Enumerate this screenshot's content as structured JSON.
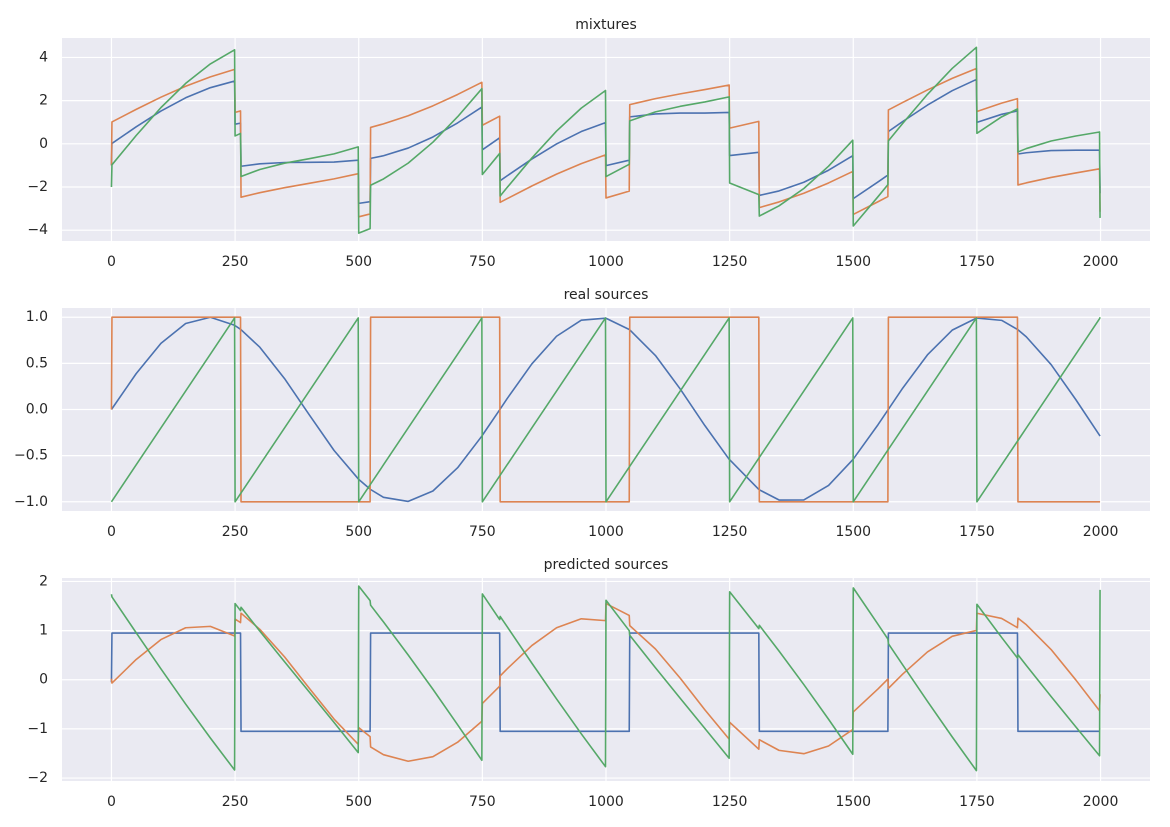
{
  "chart_data": [
    {
      "type": "line",
      "title": "mixtures",
      "x": [
        0,
        1,
        50,
        100,
        150,
        200,
        249,
        250,
        261,
        262,
        300,
        350,
        400,
        450,
        499,
        500,
        523,
        524,
        550,
        600,
        650,
        700,
        749,
        750,
        785,
        786,
        800,
        850,
        900,
        950,
        999,
        1000,
        1047,
        1048,
        1100,
        1150,
        1200,
        1249,
        1250,
        1309,
        1310,
        1350,
        1400,
        1450,
        1499,
        1500,
        1550,
        1570,
        1571,
        1600,
        1650,
        1700,
        1749,
        1750,
        1800,
        1832,
        1833,
        1850,
        1900,
        1950,
        1998,
        1999
      ],
      "series": [
        {
          "color": "#4c72b0",
          "values": [
            -1,
            0.016,
            0.789,
            1.517,
            2.132,
            2.6,
            2.905,
            0.909,
            0.957,
            -1.039,
            -0.925,
            -0.865,
            -0.858,
            -0.843,
            -0.759,
            -2.757,
            -2.679,
            -0.675,
            -0.552,
            -0.196,
            0.317,
            0.969,
            1.704,
            -0.279,
            0.277,
            -1.707,
            -1.483,
            -0.706,
            -0.006,
            0.568,
            0.982,
            -1.011,
            -0.757,
            1.247,
            1.385,
            1.423,
            1.425,
            1.452,
            -0.544,
            -0.394,
            -2.39,
            -2.181,
            -1.78,
            -1.223,
            -0.552,
            -2.537,
            -1.765,
            -1.446,
            0.57,
            1.032,
            1.792,
            2.46,
            2.982,
            0.991,
            1.366,
            1.524,
            -0.472,
            -0.413,
            -0.313,
            -0.293,
            -0.296,
            -2.288
          ]
        },
        {
          "color": "#dd8452",
          "values": [
            -1,
            1.012,
            1.595,
            2.159,
            2.666,
            3.1,
            3.449,
            1.455,
            1.523,
            -2.472,
            -2.263,
            -2.033,
            -1.829,
            -1.622,
            -1.384,
            -3.379,
            -3.248,
            0.759,
            0.924,
            1.302,
            1.759,
            2.285,
            2.848,
            0.861,
            1.279,
            -2.71,
            -2.542,
            -1.953,
            -1.403,
            -0.916,
            -0.513,
            -2.506,
            -2.19,
            1.816,
            2.093,
            2.312,
            2.513,
            2.722,
            0.728,
            1.039,
            -2.955,
            -2.691,
            -2.29,
            -1.812,
            -1.28,
            -3.269,
            -2.683,
            -2.443,
            1.569,
            1.916,
            2.496,
            3.03,
            3.487,
            1.496,
            1.883,
            2.09,
            -1.904,
            -1.807,
            -1.557,
            -1.347,
            -1.156,
            -3.144
          ]
        },
        {
          "color": "#55a868",
          "values": [
            -2,
            -0.972,
            0.384,
            1.676,
            2.798,
            3.7,
            4.354,
            0.364,
            0.48,
            -1.511,
            -1.188,
            -0.898,
            -0.687,
            -0.465,
            -0.143,
            -4.136,
            -3.927,
            -1.917,
            -1.628,
            -0.894,
            0.076,
            1.254,
            2.552,
            -1.419,
            -0.445,
            -2.417,
            -2.025,
            -0.659,
            0.591,
            1.652,
            2.469,
            -1.517,
            -0.947,
            1.063,
            1.478,
            1.735,
            1.938,
            2.174,
            -1.816,
            -2.355,
            -3.345,
            -2.872,
            -2.07,
            -1.035,
            0.168,
            -3.806,
            -2.448,
            -1.889,
            0.139,
            0.948,
            2.288,
            3.49,
            4.469,
            0.487,
            1.249,
            1.614,
            -0.376,
            -0.22,
            0.131,
            0.361,
            0.548,
            -3.432
          ]
        }
      ],
      "xlim": [
        -100,
        2100
      ],
      "ylim": [
        -4.5,
        4.9
      ],
      "xticks": [
        0,
        250,
        500,
        750,
        1000,
        1250,
        1500,
        1750,
        2000
      ],
      "yticks": [
        {
          "value": -4,
          "label": "−4"
        },
        {
          "value": -2,
          "label": "−2"
        },
        0,
        2,
        4
      ],
      "grid": true
    },
    {
      "type": "line",
      "title": "real sources",
      "x": [
        0,
        1,
        50,
        100,
        150,
        200,
        249,
        250,
        261,
        262,
        300,
        350,
        400,
        450,
        499,
        500,
        523,
        524,
        550,
        600,
        650,
        700,
        749,
        750,
        785,
        786,
        800,
        850,
        900,
        950,
        999,
        1000,
        1047,
        1048,
        1100,
        1150,
        1200,
        1249,
        1250,
        1309,
        1310,
        1350,
        1400,
        1450,
        1499,
        1500,
        1550,
        1570,
        1571,
        1600,
        1650,
        1700,
        1749,
        1750,
        1800,
        1832,
        1833,
        1850,
        1900,
        1950,
        1998,
        1999
      ],
      "series": [
        {
          "color": "#4c72b0",
          "values": [
            0,
            0.008,
            0.389,
            0.717,
            0.932,
            1.0,
            0.913,
            0.909,
            0.869,
            0.865,
            0.675,
            0.335,
            -0.058,
            -0.443,
            -0.751,
            -0.757,
            -0.863,
            -0.867,
            -0.952,
            -0.996,
            -0.883,
            -0.631,
            -0.288,
            -0.279,
            -0.003,
            0.005,
            0.117,
            0.494,
            0.794,
            0.968,
            0.99,
            0.989,
            0.867,
            0.863,
            0.585,
            0.223,
            -0.175,
            -0.54,
            -0.544,
            -0.866,
            -0.87,
            -0.981,
            -0.98,
            -0.823,
            -0.544,
            -0.537,
            -0.165,
            -0.006,
            0.002,
            0.232,
            0.592,
            0.86,
            0.99,
            0.991,
            0.966,
            0.868,
            0.864,
            0.787,
            0.487,
            0.107,
            -0.28,
            -0.288
          ]
        },
        {
          "color": "#dd8452",
          "values": [
            0,
            1,
            1,
            1,
            1,
            1,
            1,
            1,
            1,
            -1,
            -1,
            -1,
            -1,
            -1,
            -1,
            -1,
            -1,
            1,
            1,
            1,
            1,
            1,
            1,
            1,
            1,
            -1,
            -1,
            -1,
            -1,
            -1,
            -1,
            -1,
            -1,
            1,
            1,
            1,
            1,
            1,
            1,
            1,
            -1,
            -1,
            -1,
            -1,
            -1,
            -1,
            -1,
            -1,
            1,
            1,
            1,
            1,
            1,
            1,
            1,
            1,
            -1,
            -1,
            -1,
            -1,
            -1,
            -1
          ]
        },
        {
          "color": "#55a868",
          "values": [
            -1,
            -0.992,
            -0.6,
            -0.2,
            0.2,
            0.6,
            0.992,
            -1,
            -0.912,
            -0.904,
            -0.6,
            -0.2,
            0.2,
            0.6,
            0.992,
            -1,
            -0.816,
            -0.808,
            -0.6,
            -0.2,
            0.2,
            0.6,
            0.992,
            -1,
            -0.72,
            -0.712,
            -0.6,
            -0.2,
            0.2,
            0.6,
            0.992,
            -1,
            -0.624,
            -0.616,
            -0.2,
            0.2,
            0.6,
            0.992,
            -1,
            -0.528,
            -0.52,
            -0.2,
            0.2,
            0.6,
            0.992,
            -1,
            -0.6,
            -0.44,
            -0.432,
            -0.2,
            0.2,
            0.6,
            0.992,
            -1,
            -0.6,
            -0.344,
            -0.336,
            -0.2,
            0.2,
            0.6,
            0.984,
            1.0
          ]
        }
      ],
      "xlim": [
        -100,
        2100
      ],
      "ylim": [
        -1.1,
        1.1
      ],
      "xticks": [
        0,
        250,
        500,
        750,
        1000,
        1250,
        1500,
        1750,
        2000
      ],
      "yticks": [
        {
          "value": -1,
          "label": "−1.0"
        },
        {
          "value": -0.5,
          "label": "−0.5"
        },
        {
          "value": 0,
          "label": "0.0"
        },
        0.5,
        {
          "value": 1,
          "label": "1.0"
        }
      ],
      "grid": true
    },
    {
      "type": "line",
      "title": "predicted sources",
      "x": [
        0,
        1,
        50,
        100,
        150,
        200,
        249,
        250,
        261,
        262,
        300,
        350,
        400,
        450,
        499,
        500,
        523,
        524,
        550,
        600,
        650,
        700,
        749,
        750,
        785,
        786,
        800,
        850,
        900,
        950,
        999,
        1000,
        1047,
        1048,
        1100,
        1150,
        1200,
        1249,
        1250,
        1309,
        1310,
        1350,
        1400,
        1450,
        1499,
        1500,
        1550,
        1570,
        1571,
        1600,
        1650,
        1700,
        1749,
        1750,
        1800,
        1832,
        1833,
        1850,
        1900,
        1950,
        1998,
        1999
      ],
      "series": [
        {
          "color": "#4c72b0",
          "values": [
            -0.05,
            0.95,
            0.95,
            0.95,
            0.95,
            0.95,
            0.95,
            0.95,
            0.95,
            -1.05,
            -1.05,
            -1.05,
            -1.05,
            -1.05,
            -1.05,
            -1.05,
            -1.05,
            0.95,
            0.95,
            0.95,
            0.95,
            0.95,
            0.95,
            0.95,
            0.95,
            -1.05,
            -1.05,
            -1.05,
            -1.05,
            -1.05,
            -1.05,
            -1.05,
            -1.05,
            0.95,
            0.95,
            0.95,
            0.95,
            0.95,
            0.95,
            0.95,
            -1.05,
            -1.05,
            -1.05,
            -1.05,
            -1.05,
            -1.05,
            -1.05,
            -1.05,
            0.95,
            0.95,
            0.95,
            0.95,
            0.95,
            0.95,
            0.95,
            0.95,
            -1.05,
            -1.05,
            -1.05,
            -1.05,
            -1.05,
            -1.05
          ]
        },
        {
          "color": "#dd8452",
          "values": [
            0.021,
            -0.068,
            0.413,
            0.817,
            1.058,
            1.086,
            0.891,
            1.235,
            1.162,
            1.354,
            1.026,
            0.465,
            -0.173,
            -0.799,
            -1.313,
            -0.973,
            -1.158,
            -1.366,
            -1.525,
            -1.658,
            -1.565,
            -1.271,
            -0.844,
            -0.482,
            -0.132,
            0.078,
            0.22,
            0.695,
            1.058,
            1.24,
            1.203,
            1.55,
            1.308,
            1.101,
            0.626,
            0.033,
            -0.612,
            -1.208,
            -0.865,
            -1.413,
            -1.22,
            -1.437,
            -1.505,
            -1.348,
            -1.014,
            -0.655,
            -0.187,
            0.014,
            -0.175,
            0.116,
            0.566,
            0.884,
            1.003,
            1.353,
            1.247,
            1.06,
            1.253,
            1.118,
            0.615,
            -0.004,
            -0.631,
            -0.295
          ]
        },
        {
          "color": "#55a868",
          "values": [
            1.74,
            1.685,
            0.956,
            0.222,
            -0.494,
            -1.185,
            -1.837,
            1.55,
            1.407,
            1.474,
            0.989,
            0.365,
            -0.25,
            -0.867,
            -1.482,
            1.905,
            1.609,
            1.517,
            1.177,
            0.504,
            -0.194,
            -0.916,
            -1.638,
            1.746,
            1.224,
            1.289,
            1.081,
            0.338,
            -0.391,
            -1.1,
            -1.769,
            1.617,
            0.998,
            0.905,
            0.243,
            -0.377,
            -0.991,
            -1.597,
            1.79,
            1.041,
            1.108,
            0.582,
            -0.098,
            -0.804,
            -1.516,
            1.869,
            1.127,
            0.829,
            0.734,
            0.302,
            -0.438,
            -1.162,
            -1.849,
            1.536,
            0.861,
            0.442,
            0.508,
            0.29,
            -0.34,
            -0.958,
            -1.547,
            1.828
          ]
        }
      ],
      "xlim": [
        -100,
        2100
      ],
      "ylim": [
        -2.06,
        2.07
      ],
      "xticks": [
        0,
        250,
        500,
        750,
        1000,
        1250,
        1500,
        1750,
        2000
      ],
      "yticks": [
        {
          "value": -2,
          "label": "−2"
        },
        {
          "value": -1,
          "label": "−1"
        },
        0,
        1,
        2
      ],
      "grid": true
    }
  ]
}
